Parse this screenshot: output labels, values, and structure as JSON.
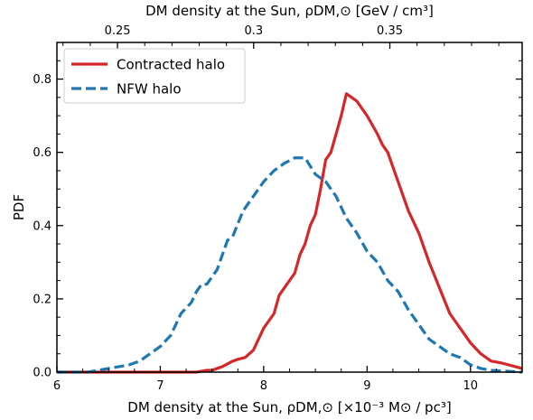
{
  "chart_data": {
    "type": "line",
    "xlabel": "DM density at the Sun, ρDM,⊙ [×10⁻³ M⊙ / pc³]",
    "xlabel_top": "DM density at the Sun, ρDM,⊙ [GeV / cm³]",
    "ylabel": "PDF",
    "xlim": [
      6,
      10.5
    ],
    "ylim": [
      0,
      0.9
    ],
    "x_ticks": [
      6,
      7,
      8,
      9,
      10
    ],
    "x_tick_labels": [
      "6",
      "7",
      "8",
      "9",
      "10"
    ],
    "y_ticks": [
      0.0,
      0.2,
      0.4,
      0.6,
      0.8
    ],
    "y_tick_labels": [
      "0.0",
      "0.2",
      "0.4",
      "0.6",
      "0.8"
    ],
    "top_ticks": [
      0.25,
      0.3,
      0.35
    ],
    "top_tick_labels": [
      "0.25",
      "0.3",
      "0.35"
    ],
    "top_axis_conversion_factor": 0.03796,
    "legend_position": "top-left",
    "grid": false,
    "series": [
      {
        "name": "Contracted halo",
        "color": "#d62728",
        "style": "solid",
        "x": [
          6.0,
          7.0,
          7.2,
          7.35,
          7.45,
          7.5,
          7.55,
          7.6,
          7.7,
          7.75,
          7.82,
          7.9,
          8.0,
          8.1,
          8.15,
          8.2,
          8.3,
          8.35,
          8.4,
          8.45,
          8.5,
          8.55,
          8.6,
          8.65,
          8.7,
          8.75,
          8.8,
          8.85,
          8.9,
          9.0,
          9.1,
          9.15,
          9.2,
          9.3,
          9.4,
          9.5,
          9.6,
          9.7,
          9.8,
          9.9,
          10.0,
          10.1,
          10.2,
          10.3,
          10.5
        ],
        "y": [
          0.0,
          0.0,
          0.0,
          0.0,
          0.005,
          0.005,
          0.01,
          0.015,
          0.03,
          0.035,
          0.04,
          0.06,
          0.12,
          0.16,
          0.21,
          0.23,
          0.27,
          0.32,
          0.35,
          0.4,
          0.43,
          0.5,
          0.58,
          0.6,
          0.65,
          0.7,
          0.76,
          0.75,
          0.74,
          0.7,
          0.65,
          0.62,
          0.6,
          0.52,
          0.44,
          0.38,
          0.3,
          0.23,
          0.16,
          0.12,
          0.08,
          0.05,
          0.03,
          0.025,
          0.01
        ]
      },
      {
        "name": "NFW halo",
        "color": "#1f77b4",
        "style": "dashed",
        "x": [
          6.0,
          6.3,
          6.5,
          6.7,
          6.8,
          6.9,
          7.0,
          7.1,
          7.15,
          7.2,
          7.3,
          7.35,
          7.4,
          7.45,
          7.5,
          7.55,
          7.6,
          7.65,
          7.7,
          7.8,
          7.9,
          8.0,
          8.1,
          8.2,
          8.3,
          8.4,
          8.5,
          8.6,
          8.7,
          8.8,
          8.9,
          9.0,
          9.1,
          9.2,
          9.3,
          9.4,
          9.5,
          9.6,
          9.7,
          9.8,
          9.9,
          10.0,
          10.1,
          10.2,
          10.5
        ],
        "y": [
          0.0,
          0.0,
          0.01,
          0.02,
          0.03,
          0.05,
          0.07,
          0.1,
          0.13,
          0.16,
          0.19,
          0.22,
          0.24,
          0.24,
          0.26,
          0.28,
          0.32,
          0.36,
          0.37,
          0.44,
          0.48,
          0.52,
          0.55,
          0.57,
          0.585,
          0.585,
          0.54,
          0.52,
          0.48,
          0.42,
          0.38,
          0.33,
          0.3,
          0.25,
          0.22,
          0.17,
          0.13,
          0.09,
          0.07,
          0.05,
          0.04,
          0.02,
          0.01,
          0.005,
          0.0
        ]
      }
    ]
  }
}
